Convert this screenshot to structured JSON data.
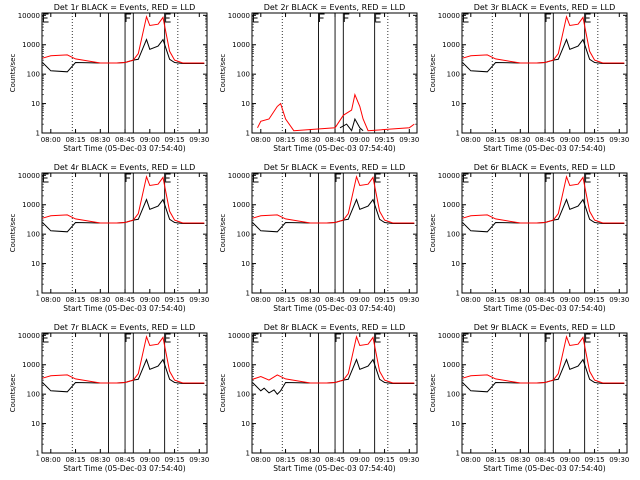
{
  "colors": {
    "events": "#000000",
    "lld": "#ff0000",
    "frame": "#000000",
    "background": "#ffffff"
  },
  "x_ticks": [
    "08:00",
    "08:15",
    "08:30",
    "08:45",
    "09:00",
    "09:15",
    "09:30"
  ],
  "y_ticks": [
    "1",
    "10",
    "100",
    "1000",
    "10000"
  ],
  "ylabel": "Counts/sec",
  "xlabel": "Start Time (05-Dec-03 07:54:40)",
  "chart_data": [
    {
      "type": "line",
      "title": "Det 1r BLACK = Events, RED = LLD",
      "yscale": "log",
      "ylim": [
        1,
        12000
      ],
      "xlim": [
        "07:54:40",
        "09:34:40"
      ],
      "vlines_dotted": [
        "08:13",
        "09:17"
      ],
      "vlines_solid": [
        "08:35",
        "08:45",
        "08:50",
        "09:09"
      ],
      "markers_F": [
        "08:45"
      ],
      "markers_E": [
        "07:55",
        "09:09"
      ],
      "series": [
        {
          "name": "Events",
          "x": [
            "07:55",
            "08:00",
            "08:10",
            "08:15",
            "08:30",
            "08:40",
            "08:45",
            "08:50",
            "08:53",
            "08:58",
            "09:00",
            "09:05",
            "09:08",
            "09:12",
            "09:15",
            "09:20",
            "09:33"
          ],
          "values": [
            250,
            130,
            120,
            250,
            240,
            240,
            250,
            300,
            320,
            1500,
            700,
            900,
            1500,
            320,
            250,
            230,
            230
          ]
        },
        {
          "name": "LLD",
          "x": [
            "07:55",
            "08:00",
            "08:10",
            "08:15",
            "08:30",
            "08:40",
            "08:45",
            "08:50",
            "08:53",
            "08:58",
            "09:00",
            "09:05",
            "09:08",
            "09:12",
            "09:15",
            "09:20",
            "09:33"
          ],
          "values": [
            350,
            420,
            450,
            330,
            240,
            240,
            250,
            300,
            500,
            9000,
            4500,
            5000,
            8500,
            600,
            300,
            240,
            240
          ]
        }
      ]
    },
    {
      "type": "line",
      "title": "Det 2r BLACK = Events, RED = LLD",
      "yscale": "log",
      "ylim": [
        1,
        12000
      ],
      "xlim": [
        "07:54:40",
        "09:34:40"
      ],
      "vlines_dotted": [
        "08:13",
        "09:17"
      ],
      "vlines_solid": [
        "08:35",
        "08:45",
        "08:50",
        "09:09"
      ],
      "markers_F": [
        "08:35",
        "08:50"
      ],
      "markers_E": [
        "07:55",
        "09:09"
      ],
      "series": [
        {
          "name": "Events",
          "x": [
            "08:48",
            "08:52",
            "08:55",
            "08:57",
            "09:00",
            "09:02"
          ],
          "values": [
            1.5,
            2,
            1.2,
            3,
            1.5,
            1.2
          ]
        },
        {
          "name": "LLD",
          "x": [
            "07:58",
            "08:00",
            "08:05",
            "08:10",
            "08:12",
            "08:15",
            "08:20",
            "08:45",
            "08:50",
            "08:55",
            "08:57",
            "09:00",
            "09:02",
            "09:05",
            "09:30",
            "09:33"
          ],
          "values": [
            1.5,
            2.5,
            3,
            8,
            10,
            3,
            1.2,
            1.5,
            4,
            6,
            20,
            8,
            3,
            1.2,
            1.5,
            2
          ]
        }
      ]
    },
    {
      "type": "line",
      "title": "Det 3r BLACK = Events, RED = LLD",
      "yscale": "log",
      "ylim": [
        1,
        12000
      ],
      "xlim": [
        "07:54:40",
        "09:34:40"
      ],
      "vlines_dotted": [
        "08:13",
        "09:17"
      ],
      "vlines_solid": [
        "08:35",
        "08:45",
        "08:50",
        "09:09"
      ],
      "markers_F": [
        "08:45"
      ],
      "markers_E": [
        "07:55",
        "09:09"
      ],
      "series": [
        {
          "name": "Events",
          "x": [
            "07:55",
            "08:00",
            "08:10",
            "08:15",
            "08:30",
            "08:40",
            "08:45",
            "08:50",
            "08:53",
            "08:58",
            "09:00",
            "09:05",
            "09:08",
            "09:12",
            "09:15",
            "09:20",
            "09:33"
          ],
          "values": [
            250,
            130,
            120,
            250,
            240,
            240,
            250,
            300,
            320,
            1500,
            700,
            900,
            1500,
            320,
            250,
            230,
            230
          ]
        },
        {
          "name": "LLD",
          "x": [
            "07:55",
            "08:00",
            "08:10",
            "08:15",
            "08:30",
            "08:40",
            "08:45",
            "08:50",
            "08:53",
            "08:58",
            "09:00",
            "09:05",
            "09:08",
            "09:12",
            "09:15",
            "09:20",
            "09:33"
          ],
          "values": [
            350,
            420,
            450,
            330,
            240,
            240,
            250,
            300,
            500,
            9000,
            4500,
            5000,
            8500,
            600,
            300,
            240,
            240
          ]
        }
      ]
    },
    {
      "type": "line",
      "title": "Det 4r BLACK = Events, RED = LLD",
      "yscale": "log",
      "ylim": [
        1,
        12000
      ],
      "xlim": [
        "07:54:40",
        "09:34:40"
      ],
      "vlines_dotted": [
        "08:13",
        "09:17"
      ],
      "vlines_solid": [
        "08:35",
        "08:45",
        "08:50",
        "09:09"
      ],
      "markers_F": [
        "08:45"
      ],
      "markers_E": [
        "07:55",
        "09:09"
      ],
      "series": [
        {
          "name": "Events",
          "x": [
            "07:55",
            "08:00",
            "08:10",
            "08:15",
            "08:30",
            "08:40",
            "08:45",
            "08:50",
            "08:53",
            "08:58",
            "09:00",
            "09:05",
            "09:08",
            "09:12",
            "09:15",
            "09:20",
            "09:33"
          ],
          "values": [
            250,
            130,
            120,
            250,
            240,
            240,
            250,
            300,
            320,
            1500,
            700,
            900,
            1500,
            320,
            250,
            230,
            230
          ]
        },
        {
          "name": "LLD",
          "x": [
            "07:55",
            "08:00",
            "08:10",
            "08:15",
            "08:30",
            "08:40",
            "08:45",
            "08:50",
            "08:53",
            "08:58",
            "09:00",
            "09:05",
            "09:08",
            "09:12",
            "09:15",
            "09:20",
            "09:33"
          ],
          "values": [
            350,
            420,
            450,
            330,
            240,
            240,
            250,
            300,
            500,
            9000,
            4500,
            5000,
            8500,
            600,
            300,
            240,
            240
          ]
        }
      ]
    },
    {
      "type": "line",
      "title": "Det 5r BLACK = Events, RED = LLD",
      "yscale": "log",
      "ylim": [
        1,
        12000
      ],
      "xlim": [
        "07:54:40",
        "09:34:40"
      ],
      "vlines_dotted": [
        "08:13",
        "09:17"
      ],
      "vlines_solid": [
        "08:35",
        "08:45",
        "08:50",
        "09:09"
      ],
      "markers_F": [
        "08:45"
      ],
      "markers_E": [
        "07:55",
        "09:09"
      ],
      "series": [
        {
          "name": "Events",
          "x": [
            "07:55",
            "08:00",
            "08:10",
            "08:15",
            "08:30",
            "08:40",
            "08:45",
            "08:50",
            "08:53",
            "08:58",
            "09:00",
            "09:05",
            "09:08",
            "09:12",
            "09:15",
            "09:20",
            "09:33"
          ],
          "values": [
            250,
            130,
            120,
            250,
            240,
            240,
            250,
            300,
            320,
            1500,
            700,
            900,
            1500,
            320,
            250,
            230,
            230
          ]
        },
        {
          "name": "LLD",
          "x": [
            "07:55",
            "08:00",
            "08:10",
            "08:15",
            "08:30",
            "08:40",
            "08:45",
            "08:50",
            "08:53",
            "08:58",
            "09:00",
            "09:05",
            "09:08",
            "09:12",
            "09:15",
            "09:20",
            "09:33"
          ],
          "values": [
            350,
            420,
            450,
            330,
            240,
            240,
            250,
            300,
            500,
            9000,
            4500,
            5000,
            8500,
            600,
            300,
            240,
            240
          ]
        }
      ]
    },
    {
      "type": "line",
      "title": "Det 6r BLACK = Events, RED = LLD",
      "yscale": "log",
      "ylim": [
        1,
        12000
      ],
      "xlim": [
        "07:54:40",
        "09:34:40"
      ],
      "vlines_dotted": [
        "08:13",
        "09:17"
      ],
      "vlines_solid": [
        "08:35",
        "08:45",
        "08:50",
        "09:09"
      ],
      "markers_F": [
        "08:45"
      ],
      "markers_E": [
        "07:55",
        "09:09"
      ],
      "series": [
        {
          "name": "Events",
          "x": [
            "07:55",
            "08:00",
            "08:10",
            "08:15",
            "08:30",
            "08:40",
            "08:45",
            "08:50",
            "08:53",
            "08:58",
            "09:00",
            "09:05",
            "09:08",
            "09:12",
            "09:15",
            "09:20",
            "09:33"
          ],
          "values": [
            250,
            130,
            120,
            250,
            240,
            240,
            250,
            300,
            320,
            1500,
            700,
            900,
            1500,
            320,
            250,
            230,
            230
          ]
        },
        {
          "name": "LLD",
          "x": [
            "07:55",
            "08:00",
            "08:10",
            "08:15",
            "08:30",
            "08:40",
            "08:45",
            "08:50",
            "08:53",
            "08:58",
            "09:00",
            "09:05",
            "09:08",
            "09:12",
            "09:15",
            "09:20",
            "09:33"
          ],
          "values": [
            350,
            420,
            450,
            330,
            240,
            240,
            250,
            300,
            500,
            9000,
            4500,
            5000,
            8500,
            600,
            300,
            240,
            240
          ]
        }
      ]
    },
    {
      "type": "line",
      "title": "Det 7r BLACK = Events, RED = LLD",
      "yscale": "log",
      "ylim": [
        1,
        12000
      ],
      "xlim": [
        "07:54:40",
        "09:34:40"
      ],
      "vlines_dotted": [
        "08:13",
        "09:17"
      ],
      "vlines_solid": [
        "08:35",
        "08:45",
        "08:50",
        "09:09"
      ],
      "markers_F": [
        "08:45"
      ],
      "markers_E": [
        "07:55",
        "09:09"
      ],
      "series": [
        {
          "name": "Events",
          "x": [
            "07:55",
            "08:00",
            "08:10",
            "08:15",
            "08:30",
            "08:40",
            "08:45",
            "08:50",
            "08:53",
            "08:58",
            "09:00",
            "09:05",
            "09:08",
            "09:12",
            "09:15",
            "09:20",
            "09:33"
          ],
          "values": [
            250,
            130,
            120,
            250,
            240,
            240,
            250,
            300,
            320,
            1500,
            700,
            900,
            1500,
            320,
            250,
            230,
            230
          ]
        },
        {
          "name": "LLD",
          "x": [
            "07:55",
            "08:00",
            "08:10",
            "08:15",
            "08:30",
            "08:40",
            "08:45",
            "08:50",
            "08:53",
            "08:58",
            "09:00",
            "09:05",
            "09:08",
            "09:12",
            "09:15",
            "09:20",
            "09:33"
          ],
          "values": [
            350,
            420,
            450,
            330,
            240,
            240,
            250,
            300,
            500,
            9000,
            4500,
            5000,
            8500,
            600,
            300,
            240,
            240
          ]
        }
      ]
    },
    {
      "type": "line",
      "title": "Det 8r BLACK = Events, RED = LLD",
      "yscale": "log",
      "ylim": [
        1,
        12000
      ],
      "xlim": [
        "07:54:40",
        "09:34:40"
      ],
      "vlines_dotted": [
        "08:13",
        "09:17"
      ],
      "vlines_solid": [
        "08:35",
        "08:45",
        "08:50",
        "09:09"
      ],
      "markers_F": [
        "08:45"
      ],
      "markers_E": [
        "07:55",
        "09:09"
      ],
      "series": [
        {
          "name": "Events",
          "x": [
            "07:55",
            "08:00",
            "08:02",
            "08:05",
            "08:08",
            "08:10",
            "08:12",
            "08:15",
            "08:30",
            "08:40",
            "08:45",
            "08:50",
            "08:53",
            "08:58",
            "09:00",
            "09:05",
            "09:08",
            "09:12",
            "09:15",
            "09:20",
            "09:33"
          ],
          "values": [
            250,
            130,
            160,
            110,
            140,
            100,
            130,
            250,
            240,
            240,
            250,
            300,
            320,
            1500,
            700,
            900,
            1500,
            320,
            250,
            230,
            230
          ]
        },
        {
          "name": "LLD",
          "x": [
            "07:55",
            "08:00",
            "08:05",
            "08:10",
            "08:15",
            "08:30",
            "08:40",
            "08:45",
            "08:50",
            "08:53",
            "08:58",
            "09:00",
            "09:05",
            "09:08",
            "09:12",
            "09:15",
            "09:20",
            "09:33"
          ],
          "values": [
            320,
            400,
            300,
            450,
            330,
            240,
            240,
            250,
            300,
            500,
            9000,
            4500,
            5000,
            8500,
            600,
            300,
            240,
            240
          ]
        }
      ]
    },
    {
      "type": "line",
      "title": "Det 9r BLACK = Events, RED = LLD",
      "yscale": "log",
      "ylim": [
        1,
        12000
      ],
      "xlim": [
        "07:54:40",
        "09:34:40"
      ],
      "vlines_dotted": [
        "08:13",
        "09:17"
      ],
      "vlines_solid": [
        "08:35",
        "08:45",
        "08:50",
        "09:09"
      ],
      "markers_F": [
        "08:45"
      ],
      "markers_E": [
        "07:55",
        "09:09"
      ],
      "series": [
        {
          "name": "Events",
          "x": [
            "07:55",
            "08:00",
            "08:10",
            "08:15",
            "08:30",
            "08:40",
            "08:45",
            "08:50",
            "08:53",
            "08:58",
            "09:00",
            "09:05",
            "09:08",
            "09:12",
            "09:15",
            "09:20",
            "09:33"
          ],
          "values": [
            250,
            130,
            120,
            250,
            240,
            240,
            250,
            300,
            320,
            1500,
            700,
            900,
            1500,
            320,
            250,
            230,
            230
          ]
        },
        {
          "name": "LLD",
          "x": [
            "07:55",
            "08:00",
            "08:10",
            "08:15",
            "08:30",
            "08:40",
            "08:45",
            "08:50",
            "08:53",
            "08:58",
            "09:00",
            "09:05",
            "09:08",
            "09:12",
            "09:15",
            "09:20",
            "09:33"
          ],
          "values": [
            350,
            420,
            450,
            330,
            240,
            240,
            250,
            300,
            500,
            9000,
            4500,
            5000,
            8500,
            600,
            300,
            240,
            240
          ]
        }
      ]
    }
  ]
}
